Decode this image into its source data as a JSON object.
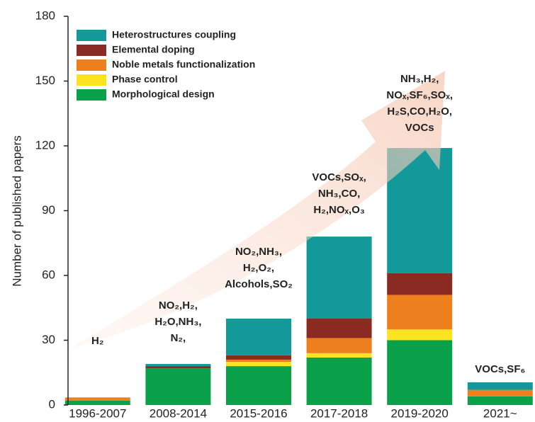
{
  "chart_data": {
    "type": "stacked-bar",
    "y_label": "Number of published papers",
    "categories": [
      "1996-2007",
      "2008-2014",
      "2015-2016",
      "2017-2018",
      "2019-2020",
      "2021~"
    ],
    "series": [
      {
        "name": "Morphological design",
        "color": "#0ba14b",
        "values": [
          2,
          17,
          18,
          22,
          30,
          4
        ]
      },
      {
        "name": "Phase control",
        "color": "#fbe31f",
        "values": [
          0,
          0,
          2,
          2,
          5,
          0
        ]
      },
      {
        "name": "Noble metals functionalization",
        "color": "#ee7f1e",
        "values": [
          1.5,
          0,
          1,
          7,
          16,
          3
        ]
      },
      {
        "name": "Elemental doping",
        "color": "#8b2a22",
        "values": [
          0,
          1,
          2,
          9,
          10,
          0
        ]
      },
      {
        "name": "Heterostructures coupling",
        "color": "#14999a",
        "values": [
          0,
          1,
          17,
          38,
          58,
          3.5
        ]
      }
    ],
    "annotations": [
      [
        "H₂"
      ],
      [
        "NO₂,H₂,",
        "H₂O,NH₃,",
        "N₂,"
      ],
      [
        "NO₂,NH₃,",
        "H₂,O₂,",
        "Alcohols,SO₂"
      ],
      [
        "VOCs,SOₓ,",
        "NH₃,CO,",
        "H₂,NOₓ,O₃"
      ],
      [
        "NH₃,H₂,",
        "NOₓ,SF₆,SOₓ,",
        "H₂S,CO,H₂O,",
        "VOCs"
      ],
      [
        "VOCs,SF₆"
      ]
    ],
    "ylim": [
      0,
      180
    ],
    "yticks": [
      0,
      30,
      60,
      90,
      120,
      150,
      180
    ]
  }
}
